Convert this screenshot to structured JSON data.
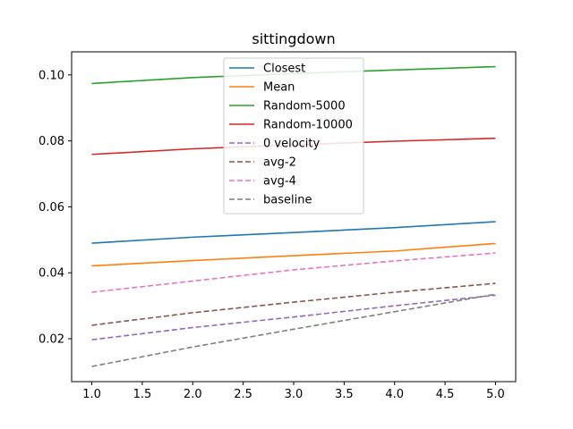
{
  "chart_data": {
    "type": "line",
    "title": "sittingdown",
    "xlabel": "",
    "ylabel": "",
    "xlim": [
      0.8,
      5.2
    ],
    "ylim": [
      0.007,
      0.107
    ],
    "x_ticks": [
      1.0,
      1.5,
      2.0,
      2.5,
      3.0,
      3.5,
      4.0,
      4.5,
      5.0
    ],
    "x_tick_labels": [
      "1.0",
      "1.5",
      "2.0",
      "2.5",
      "3.0",
      "3.5",
      "4.0",
      "4.5",
      "5.0"
    ],
    "y_ticks": [
      0.02,
      0.04,
      0.06,
      0.08,
      0.1
    ],
    "y_tick_labels": [
      "0.02",
      "0.04",
      "0.06",
      "0.08",
      "0.10"
    ],
    "grid": false,
    "legend_position": "top-center",
    "x": [
      1,
      2,
      3,
      4,
      5
    ],
    "series": [
      {
        "name": "Closest",
        "color": "#1f77b4",
        "dash": false,
        "values": [
          0.049,
          0.0508,
          0.0522,
          0.0537,
          0.0555
        ]
      },
      {
        "name": "Mean",
        "color": "#ff7f0e",
        "dash": false,
        "values": [
          0.0421,
          0.0437,
          0.0452,
          0.0466,
          0.0489
        ]
      },
      {
        "name": "Random-5000",
        "color": "#2ca02c",
        "dash": false,
        "values": [
          0.0974,
          0.0992,
          0.1004,
          0.1015,
          0.1025
        ]
      },
      {
        "name": "Random-10000",
        "color": "#d62728",
        "dash": false,
        "values": [
          0.0759,
          0.0776,
          0.0788,
          0.0799,
          0.0808
        ]
      },
      {
        "name": "0 velocity",
        "color": "#9467bd",
        "dash": true,
        "values": [
          0.0197,
          0.0234,
          0.0266,
          0.03,
          0.0332
        ]
      },
      {
        "name": "avg-2",
        "color": "#8c564b",
        "dash": true,
        "values": [
          0.0241,
          0.0279,
          0.0311,
          0.0341,
          0.0368
        ]
      },
      {
        "name": "avg-4",
        "color": "#e377c2",
        "dash": true,
        "values": [
          0.0341,
          0.0375,
          0.0409,
          0.0436,
          0.046
        ]
      },
      {
        "name": "baseline",
        "color": "#7f7f7f",
        "dash": true,
        "values": [
          0.0116,
          0.0175,
          0.0229,
          0.0282,
          0.0335
        ]
      }
    ]
  }
}
